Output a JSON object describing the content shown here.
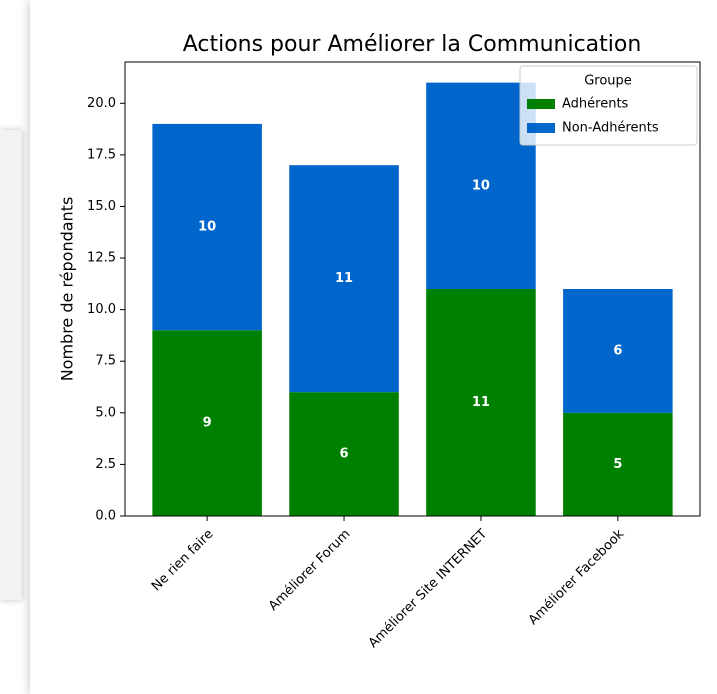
{
  "chart_data": {
    "type": "stacked_bar",
    "title": "Actions pour Améliorer la Communication",
    "ylabel": "Nombre de répondants",
    "categories": [
      "Ne rien faire",
      "Améliorer Forum",
      "Améliorer Site INTERNET",
      "Améliorer Facebook"
    ],
    "series": [
      {
        "name": "Adhérents",
        "color": "#008000",
        "values": [
          9,
          6,
          11,
          5
        ]
      },
      {
        "name": "Non-Adhérents",
        "color": "#0066cc",
        "values": [
          10,
          11,
          10,
          6
        ]
      }
    ],
    "ylim": [
      0,
      22
    ],
    "yticks": [
      {
        "value": 0,
        "label": "0.0"
      },
      {
        "value": 2.5,
        "label": "2.5"
      },
      {
        "value": 5,
        "label": "5.0"
      },
      {
        "value": 7.5,
        "label": "7.5"
      },
      {
        "value": 10,
        "label": "10.0"
      },
      {
        "value": 12.5,
        "label": "12.5"
      },
      {
        "value": 15,
        "label": "15.0"
      },
      {
        "value": 17.5,
        "label": "17.5"
      },
      {
        "value": 20,
        "label": "20.0"
      }
    ],
    "legend_title": "Groupe",
    "legend": "upper right"
  }
}
